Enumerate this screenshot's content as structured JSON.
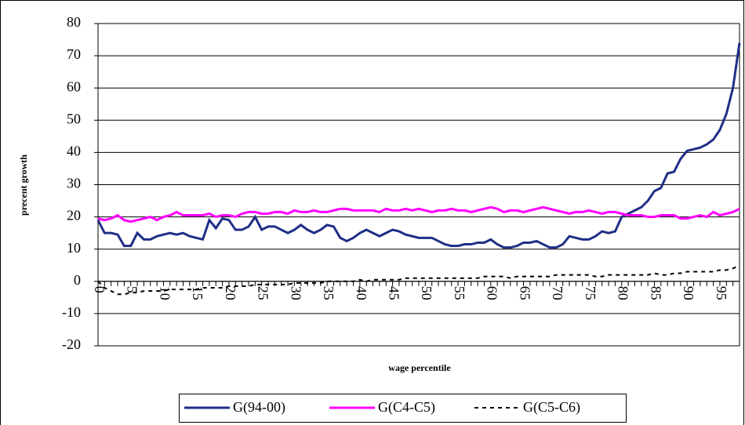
{
  "chart_data": {
    "type": "line",
    "x_label": "wage percentile",
    "y_label": "precent growth",
    "x": [
      0,
      1,
      2,
      3,
      4,
      5,
      6,
      7,
      8,
      9,
      10,
      11,
      12,
      13,
      14,
      15,
      16,
      17,
      18,
      19,
      20,
      21,
      22,
      23,
      24,
      25,
      26,
      27,
      28,
      29,
      30,
      31,
      32,
      33,
      34,
      35,
      36,
      37,
      38,
      39,
      40,
      41,
      42,
      43,
      44,
      45,
      46,
      47,
      48,
      49,
      50,
      51,
      52,
      53,
      54,
      55,
      56,
      57,
      58,
      59,
      60,
      61,
      62,
      63,
      64,
      65,
      66,
      67,
      68,
      69,
      70,
      71,
      72,
      73,
      74,
      75,
      76,
      77,
      78,
      79,
      80,
      81,
      82,
      83,
      84,
      85,
      86,
      87,
      88,
      89,
      90,
      91,
      92,
      93,
      94,
      95,
      96,
      97,
      98
    ],
    "xlim": [
      0,
      98
    ],
    "xticks": [
      0,
      5,
      10,
      15,
      20,
      25,
      30,
      35,
      40,
      45,
      50,
      55,
      60,
      65,
      70,
      75,
      80,
      85,
      90,
      95
    ],
    "ylim": [
      -20,
      80
    ],
    "yticks": [
      -20,
      -10,
      0,
      10,
      20,
      30,
      40,
      50,
      60,
      70,
      80
    ],
    "grid": true,
    "series": [
      {
        "name": "G(94-00)",
        "color": "#1f2f86",
        "values": [
          19,
          15,
          15,
          14.5,
          11,
          11,
          15,
          13,
          13,
          14,
          14.5,
          15,
          14.5,
          15,
          14,
          13.5,
          13,
          19,
          16.5,
          19.5,
          19,
          16,
          16,
          17,
          20,
          16,
          17,
          17,
          16,
          15,
          16,
          17.5,
          16,
          15,
          16,
          17.5,
          17,
          13.5,
          12.5,
          13.5,
          15,
          16,
          15,
          14,
          15,
          16,
          15.5,
          14.5,
          14,
          13.5,
          13.5,
          13.5,
          12.5,
          11.5,
          11,
          11,
          11.5,
          11.5,
          12,
          12,
          13,
          11.5,
          10.5,
          10.5,
          11,
          12,
          12,
          12.5,
          11.5,
          10.5,
          10.5,
          11.5,
          14,
          13.5,
          13,
          13,
          14,
          15.5,
          15,
          15.5,
          20,
          21,
          22,
          23,
          25,
          28,
          29,
          33.5,
          34,
          38,
          40.5,
          41,
          41.5,
          42.5,
          44,
          47,
          52,
          60,
          74
        ]
      },
      {
        "name": "G(C4-C5)",
        "color": "#ff00ff",
        "values": [
          19.5,
          19,
          19.5,
          20.5,
          19,
          18.5,
          19,
          19.5,
          20,
          19,
          20,
          20.5,
          21.5,
          20.5,
          20.5,
          20.5,
          20.5,
          21,
          20,
          20.5,
          20.5,
          20,
          21,
          21.5,
          21.5,
          21,
          21,
          21.5,
          21.5,
          21,
          22,
          21.5,
          21.5,
          22,
          21.5,
          21.5,
          22,
          22.5,
          22.5,
          22,
          22,
          22,
          22,
          21.5,
          22.5,
          22,
          22,
          22.5,
          22,
          22.5,
          22,
          21.5,
          22,
          22,
          22.5,
          22,
          22,
          21.5,
          22,
          22.5,
          23,
          22.5,
          21.5,
          22,
          22,
          21.5,
          22,
          22.5,
          23,
          22.5,
          22,
          21.5,
          21,
          21.5,
          21.5,
          22,
          21.5,
          21,
          21.5,
          21.5,
          21,
          20.5,
          20.5,
          20.5,
          20,
          20,
          20.5,
          20.5,
          20.5,
          19.5,
          19.5,
          20,
          20.5,
          20,
          21.5,
          20.5,
          21,
          21.5,
          22.5
        ]
      },
      {
        "name": "G(C5-C6)",
        "color": "#000000",
        "line_style": "dashed",
        "values": [
          0,
          -2,
          -3,
          -4,
          -4,
          -3.5,
          -3.5,
          -3,
          -3,
          -3,
          -3,
          -2.5,
          -2.5,
          -2.5,
          -2.5,
          -2.5,
          -2,
          -2,
          -2,
          -2,
          -1.5,
          -1.5,
          -1.5,
          -1.5,
          -1,
          -1,
          -1,
          -1,
          -1,
          -1,
          -0.5,
          -0.5,
          -0.5,
          -0.5,
          -0.5,
          0,
          0,
          0,
          0,
          0,
          0.5,
          0,
          0.5,
          0.5,
          0.5,
          0.5,
          0.5,
          1,
          1,
          1,
          1,
          1,
          1,
          1,
          1,
          1,
          1,
          1,
          1,
          1.5,
          1.5,
          1.5,
          1.5,
          1,
          1.5,
          1.5,
          1.5,
          1.5,
          1.5,
          1.5,
          2,
          2,
          2,
          2,
          2,
          2,
          1.5,
          1.5,
          2,
          2,
          2,
          2,
          2,
          2,
          2,
          2.5,
          2,
          2,
          2.5,
          2.5,
          3,
          3,
          3,
          3,
          3,
          3.5,
          3.5,
          4,
          5
        ]
      }
    ]
  }
}
